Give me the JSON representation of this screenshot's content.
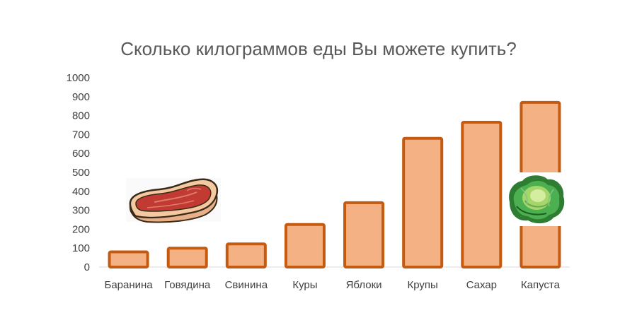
{
  "chart_data": {
    "type": "bar",
    "title": "Сколько килограммов еды Вы можете купить?",
    "xlabel": "",
    "ylabel": "",
    "categories": [
      "Баранина",
      "Говядина",
      "Свинина",
      "Куры",
      "Яблоки",
      "Крупы",
      "Сахар",
      "Капуста"
    ],
    "values": [
      80,
      100,
      122,
      225,
      340,
      680,
      765,
      870
    ],
    "ylim": [
      0,
      1000
    ],
    "yticks": [
      "0",
      "100",
      "200",
      "300",
      "400",
      "500",
      "600",
      "700",
      "800",
      "900",
      "1000"
    ],
    "grid": false,
    "legend": "none",
    "bar_fill": "#F4B183",
    "bar_stroke": "#C55A11"
  },
  "decorations": {
    "left_image": "steak-icon",
    "right_image": "cabbage-icon"
  }
}
